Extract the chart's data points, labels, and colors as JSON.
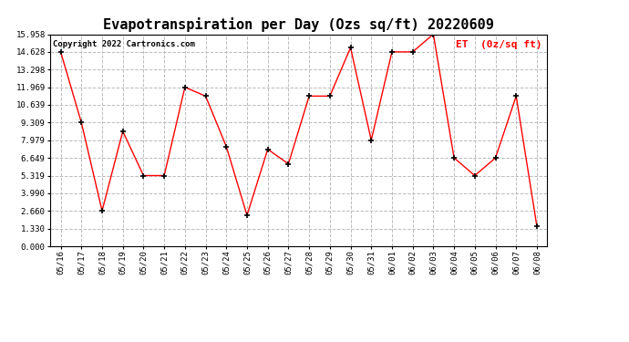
{
  "title": "Evapotranspiration per Day (Ozs sq/ft) 20220609",
  "copyright": "Copyright 2022 Cartronics.com",
  "legend_label": "ET  (0z/sq ft)",
  "dates": [
    "05/16",
    "05/17",
    "05/18",
    "05/19",
    "05/20",
    "05/21",
    "05/22",
    "05/23",
    "05/24",
    "05/25",
    "05/26",
    "05/27",
    "05/28",
    "05/29",
    "05/30",
    "05/31",
    "06/01",
    "06/02",
    "06/03",
    "06/04",
    "06/05",
    "06/06",
    "06/07",
    "06/08"
  ],
  "values": [
    14.628,
    9.309,
    2.66,
    8.65,
    5.319,
    5.319,
    11.969,
    11.3,
    7.5,
    2.33,
    7.3,
    6.2,
    11.3,
    11.3,
    14.95,
    7.979,
    14.628,
    14.628,
    15.958,
    6.649,
    5.319,
    6.649,
    11.3,
    1.5
  ],
  "line_color": "red",
  "marker_color": "black",
  "bg_color": "white",
  "grid_color": "#bbbbbb",
  "ylim": [
    0.0,
    15.958
  ],
  "yticks": [
    0.0,
    1.33,
    2.66,
    3.99,
    5.319,
    6.649,
    7.979,
    9.309,
    10.639,
    11.969,
    13.298,
    14.628,
    15.958
  ],
  "title_fontsize": 11,
  "tick_fontsize": 6.5,
  "legend_fontsize": 8,
  "copyright_fontsize": 6.5
}
